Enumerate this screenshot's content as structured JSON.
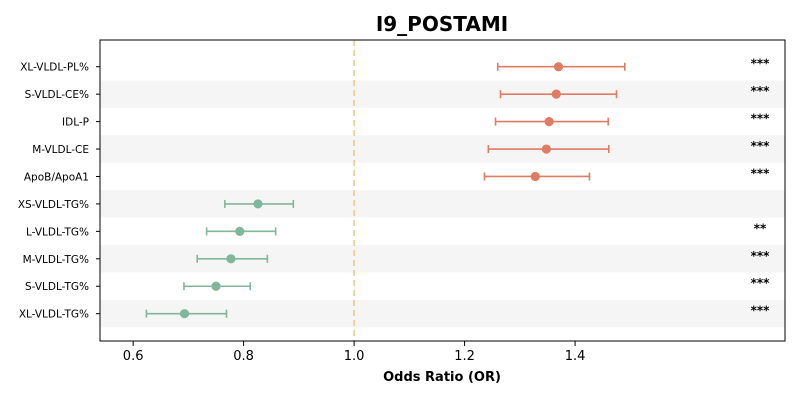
{
  "chart_data": {
    "type": "forest",
    "title": "I9_POSTAMI",
    "xlabel": "Odds Ratio (OR)",
    "ylabel": "",
    "xlim": [
      0.54,
      1.78
    ],
    "xticks": [
      0.6,
      0.8,
      1.0,
      1.2,
      1.4
    ],
    "xtick_labels": [
      "0.6",
      "0.8",
      "1.0",
      "1.2",
      "1.4"
    ],
    "reference_line": 1.0,
    "grid": false,
    "alternating_row_shading": true,
    "colors": {
      "positive": "#e07b64",
      "negative": "#80b79a",
      "reference": "#f0c98a",
      "shade": "#f5f5f5"
    },
    "rows": [
      {
        "label": "XL-VLDL-PL%",
        "or": 1.37,
        "lo": 1.26,
        "hi": 1.49,
        "sig": "***",
        "direction": "positive"
      },
      {
        "label": "S-VLDL-CE%",
        "or": 1.366,
        "lo": 1.265,
        "hi": 1.475,
        "sig": "***",
        "direction": "positive"
      },
      {
        "label": "IDL-P",
        "or": 1.353,
        "lo": 1.256,
        "hi": 1.46,
        "sig": "***",
        "direction": "positive"
      },
      {
        "label": "M-VLDL-CE",
        "or": 1.348,
        "lo": 1.243,
        "hi": 1.461,
        "sig": "***",
        "direction": "positive"
      },
      {
        "label": "ApoB/ApoA1",
        "or": 1.328,
        "lo": 1.236,
        "hi": 1.426,
        "sig": "***",
        "direction": "positive"
      },
      {
        "label": "XS-VLDL-TG%",
        "or": 0.826,
        "lo": 0.766,
        "hi": 0.89,
        "sig": "",
        "direction": "negative"
      },
      {
        "label": "L-VLDL-TG%",
        "or": 0.793,
        "lo": 0.733,
        "hi": 0.858,
        "sig": "**",
        "direction": "negative"
      },
      {
        "label": "M-VLDL-TG%",
        "or": 0.777,
        "lo": 0.716,
        "hi": 0.843,
        "sig": "***",
        "direction": "negative"
      },
      {
        "label": "S-VLDL-TG%",
        "or": 0.75,
        "lo": 0.692,
        "hi": 0.812,
        "sig": "***",
        "direction": "negative"
      },
      {
        "label": "XL-VLDL-TG%",
        "or": 0.693,
        "lo": 0.624,
        "hi": 0.769,
        "sig": "***",
        "direction": "negative"
      }
    ]
  }
}
